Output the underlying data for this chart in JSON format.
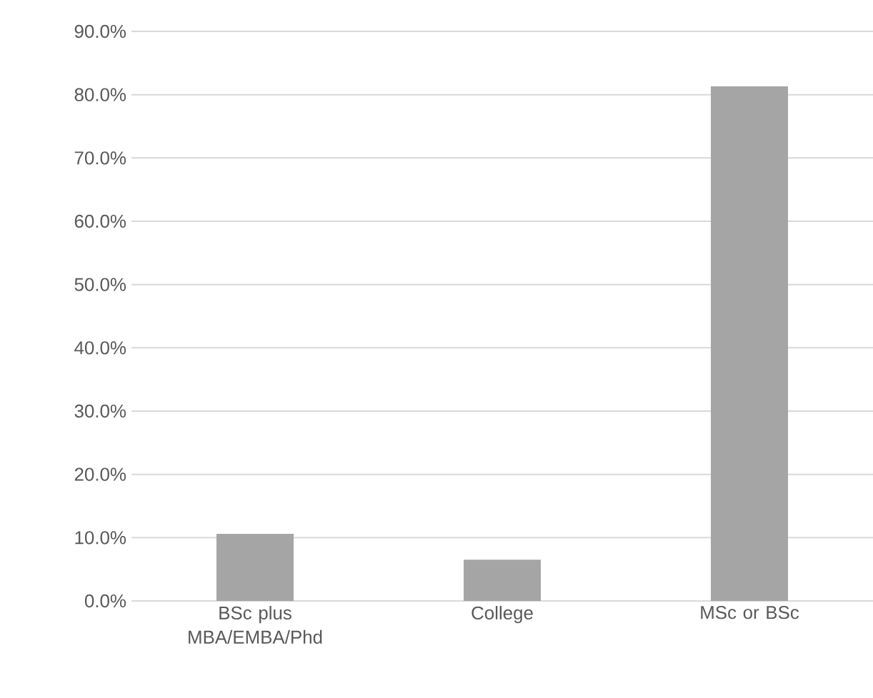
{
  "chart_data": {
    "type": "bar",
    "categories": [
      "BSc plus MBA/EMBA/Phd",
      "College",
      "MSc or BSc"
    ],
    "values": [
      10.6,
      6.5,
      81.3
    ],
    "color": "#a5a5a5",
    "ylim": [
      0,
      90
    ],
    "yticks": [
      {
        "value": 0,
        "label": "0.0%"
      },
      {
        "value": 10,
        "label": "10.0%"
      },
      {
        "value": 20,
        "label": "20.0%"
      },
      {
        "value": 30,
        "label": "30.0%"
      },
      {
        "value": 40,
        "label": "40.0%"
      },
      {
        "value": 50,
        "label": "50.0%"
      },
      {
        "value": 60,
        "label": "60.0%"
      },
      {
        "value": 70,
        "label": "70.0%"
      },
      {
        "value": 80,
        "label": "80.0%"
      },
      {
        "value": 90,
        "label": "90.0%"
      }
    ],
    "grid": "y"
  }
}
